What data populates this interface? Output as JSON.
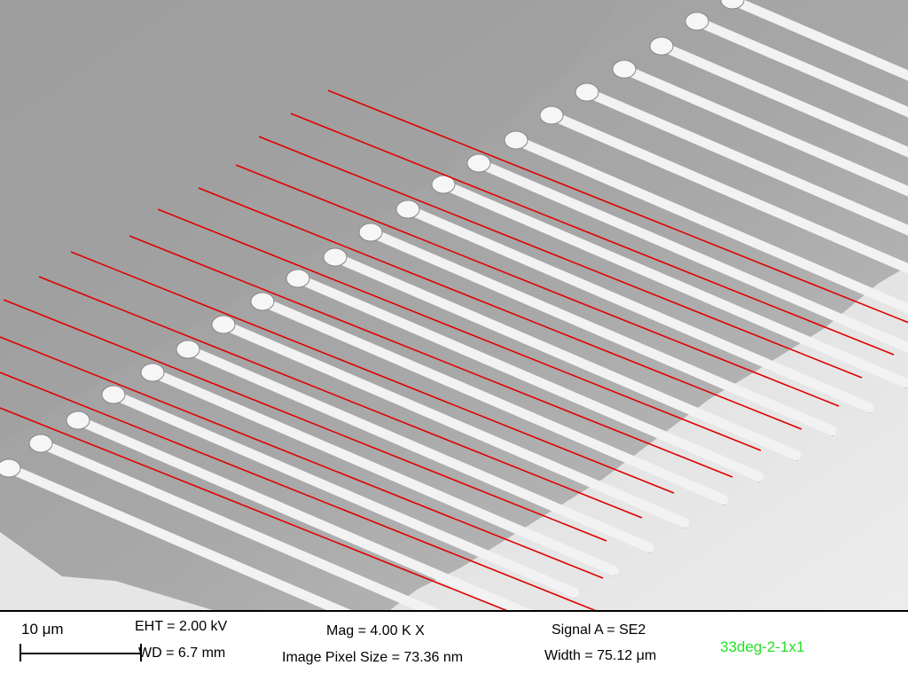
{
  "databar": {
    "scale_label": "10 μm",
    "eht": "EHT =  2.00 kV",
    "wd": "WD =  6.7 mm",
    "mag": "Mag =   4.00 K X",
    "pixel_size": "Image Pixel Size = 73.36 nm",
    "signal": "Signal A = SE2",
    "width": "Width = 75.12 μm",
    "sample_id": "33deg-2-1x1",
    "sample_id_color": "#22e022"
  },
  "overlay": {
    "measurement_line_color": "#e00000"
  }
}
